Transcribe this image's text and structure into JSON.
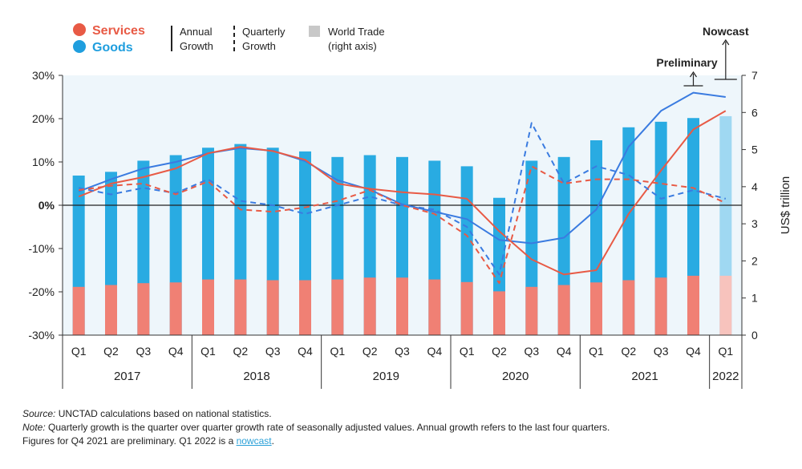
{
  "chart_data": {
    "type": "bar",
    "legend": {
      "services": "Services",
      "goods": "Goods",
      "annual": [
        "Annual",
        "Growth"
      ],
      "quarterly": [
        "Quarterly",
        "Growth"
      ],
      "world_trade": [
        "World Trade",
        "(right axis)"
      ]
    },
    "annotations": {
      "preliminary": "Preliminary",
      "nowcast": "Nowcast"
    },
    "y_left": {
      "ticks": [
        "30%",
        "20%",
        "10%",
        "0%",
        "-10%",
        "-20%",
        "-30%"
      ],
      "ylim": [
        -30,
        30
      ]
    },
    "y_right": {
      "label": "US$ trillion",
      "ticks": [
        "7",
        "6",
        "5",
        "4",
        "3",
        "2",
        "1",
        "0"
      ],
      "ylim": [
        0,
        7
      ]
    },
    "quarters": [
      "Q1",
      "Q2",
      "Q3",
      "Q4",
      "Q1",
      "Q2",
      "Q3",
      "Q4",
      "Q1",
      "Q2",
      "Q3",
      "Q4",
      "Q1",
      "Q2",
      "Q3",
      "Q4",
      "Q1",
      "Q2",
      "Q3",
      "Q4",
      "Q1"
    ],
    "years": [
      {
        "label": "2017",
        "count": 4
      },
      {
        "label": "2018",
        "count": 4
      },
      {
        "label": "2019",
        "count": 4
      },
      {
        "label": "2020",
        "count": 4
      },
      {
        "label": "2021",
        "count": 4
      },
      {
        "label": "2022",
        "count": 1
      }
    ],
    "series": [
      {
        "name": "Goods",
        "kind": "bar",
        "axis": "right",
        "color": "#29abe2",
        "nowcast_color": "#9fd8f2",
        "values": [
          4.3,
          4.4,
          4.7,
          4.85,
          5.05,
          5.15,
          5.05,
          4.95,
          4.8,
          4.85,
          4.8,
          4.7,
          4.55,
          3.7,
          4.7,
          4.8,
          5.25,
          5.6,
          5.75,
          5.85,
          5.9
        ]
      },
      {
        "name": "Services",
        "kind": "bar",
        "axis": "right",
        "color": "#f08074",
        "nowcast_color": "#f7c3bd",
        "values": [
          1.3,
          1.35,
          1.4,
          1.42,
          1.5,
          1.5,
          1.48,
          1.48,
          1.5,
          1.55,
          1.55,
          1.5,
          1.43,
          1.18,
          1.3,
          1.35,
          1.42,
          1.48,
          1.55,
          1.6,
          1.6
        ]
      },
      {
        "name": "Goods",
        "kind": "line",
        "style": "annual",
        "color": "#3a7be0",
        "values": [
          3.2,
          6.0,
          8.5,
          10.0,
          12.0,
          13.2,
          12.6,
          10.2,
          5.8,
          3.6,
          0.2,
          -1.5,
          -3.2,
          -8.0,
          -8.8,
          -7.5,
          -1.0,
          13.5,
          21.8,
          26.0,
          25.0
        ]
      },
      {
        "name": "Services",
        "kind": "line",
        "style": "annual",
        "color": "#e85a45",
        "values": [
          2.0,
          5.0,
          6.5,
          8.5,
          12.0,
          13.5,
          12.5,
          10.5,
          5.0,
          3.8,
          3.0,
          2.5,
          1.5,
          -6.0,
          -12.5,
          -16.0,
          -15.0,
          -2.0,
          8.0,
          17.5,
          21.8
        ]
      },
      {
        "name": "Goods",
        "kind": "line",
        "style": "quarterly",
        "color": "#3a7be0",
        "values": [
          4.0,
          2.5,
          4.0,
          2.8,
          6.0,
          1.0,
          0.0,
          -2.0,
          0.0,
          2.0,
          0.0,
          -1.0,
          -5.0,
          -16.0,
          19.0,
          5.0,
          9.0,
          7.0,
          1.5,
          3.5,
          1.5
        ]
      },
      {
        "name": "Services",
        "kind": "line",
        "style": "quarterly",
        "color": "#e85a45",
        "values": [
          3.5,
          4.5,
          5.0,
          2.5,
          5.5,
          -1.0,
          -1.5,
          -0.5,
          1.0,
          3.5,
          0.0,
          -2.0,
          -7.0,
          -18.0,
          9.0,
          5.0,
          6.0,
          6.0,
          5.0,
          4.0,
          0.5
        ]
      }
    ]
  },
  "footnotes": {
    "source_label": "Source:",
    "source_text": " UNCTAD calculations based on national statistics.",
    "note_label": "Note:",
    "note_text": " Quarterly growth is the quarter over quarter growth rate of seasonally adjusted values. Annual growth refers to the last four quarters.",
    "line3_text": "Figures for Q4 2021 are preliminary. Q1 2022 is a ",
    "line3_link": "nowcast",
    "line3_end": "."
  }
}
